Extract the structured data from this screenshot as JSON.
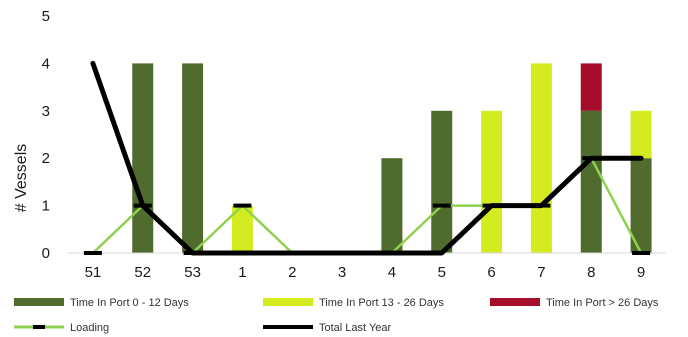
{
  "chart_data": {
    "type": "bar",
    "stacked": true,
    "title": "",
    "xlabel": "",
    "ylabel": "# Vessels",
    "ylim": [
      0,
      5
    ],
    "yticks": [
      0,
      1,
      2,
      3,
      4,
      5
    ],
    "grid": false,
    "legend_position": "bottom",
    "categories": [
      "51",
      "52",
      "53",
      "1",
      "2",
      "3",
      "4",
      "5",
      "6",
      "7",
      "8",
      "9"
    ],
    "series": [
      {
        "name": "Time In Port 0 - 12 Days",
        "kind": "bar",
        "color": "#4f6b2d",
        "values": [
          0,
          4,
          4,
          0,
          0,
          0,
          2,
          3,
          0,
          0,
          3,
          2
        ]
      },
      {
        "name": "Time In Port 13 - 26 Days",
        "kind": "bar",
        "color": "#d4ec1f",
        "values": [
          0,
          0,
          0,
          1,
          0,
          0,
          0,
          0,
          3,
          4,
          0,
          1
        ]
      },
      {
        "name": "Time In Port > 26 Days",
        "kind": "bar",
        "color": "#a50d2a",
        "values": [
          0,
          0,
          0,
          0,
          0,
          0,
          0,
          0,
          0,
          0,
          1,
          0
        ]
      },
      {
        "name": "Loading",
        "kind": "line",
        "color": "#8fd14f",
        "marker_color": "#000000",
        "values": [
          0,
          1,
          0,
          1,
          0,
          0,
          0,
          1,
          1,
          1,
          2,
          0
        ]
      },
      {
        "name": "Total Last Year",
        "kind": "line",
        "color": "#000000",
        "values": [
          4,
          1,
          0,
          0,
          0,
          0,
          0,
          0,
          1,
          1,
          2,
          2
        ]
      }
    ]
  }
}
